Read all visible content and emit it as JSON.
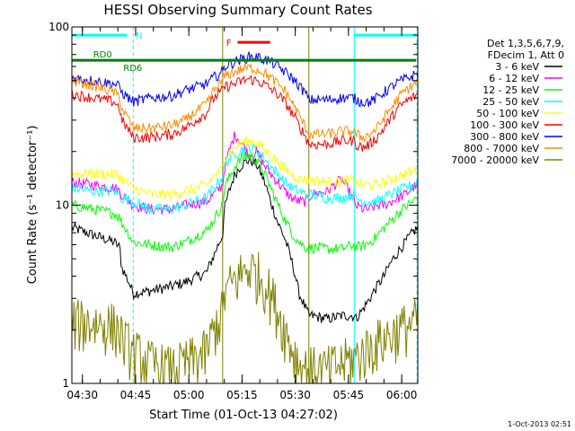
{
  "chart_data": {
    "type": "line",
    "title": "HESSI Observing Summary Count Rates",
    "xlabel": "Start Time (01-Oct-13 04:27:02)",
    "ylabel": "Count Rate (s⁻¹ detector⁻¹)",
    "y_scale": "log",
    "ylim": [
      1,
      100
    ],
    "y_ticks": [
      {
        "value": 1,
        "label": "1"
      },
      {
        "value": 10,
        "label": "10"
      },
      {
        "value": 100,
        "label": "100"
      }
    ],
    "x_unit": "minutes since 04:27:02",
    "xlim": [
      0,
      97.5
    ],
    "x_ticks": [
      {
        "label": "04:30",
        "min": 2.97
      },
      {
        "label": "04:45",
        "min": 17.97
      },
      {
        "label": "05:00",
        "min": 32.97
      },
      {
        "label": "05:15",
        "min": 47.97
      },
      {
        "label": "05:30",
        "min": 62.97
      },
      {
        "label": "05:45",
        "min": 77.97
      },
      {
        "label": "06:00",
        "min": 92.97
      }
    ],
    "timestamp": "1-Oct-2013 02:51",
    "legend_header": [
      "Det 1,3,5,6,7,9,",
      "FDecim 1, Att 0"
    ],
    "legend_placement": "right",
    "annotations": [
      {
        "label": "N",
        "color": "#00ffff",
        "segments": [
          [
            0,
            15.6
          ],
          [
            79.6,
            97
          ]
        ],
        "y": 90
      },
      {
        "label": "RD0",
        "color": "#008000",
        "segments": [
          [
            0,
            97
          ]
        ],
        "y": 65
      },
      {
        "label": "RD6",
        "color": "#008000",
        "segments": [],
        "y": 65
      },
      {
        "label": "F",
        "color": "#ff0000",
        "segments": [
          [
            46.7,
            55.9
          ]
        ],
        "y": 82
      }
    ],
    "markers": {
      "solid": [
        0,
        79.6
      ],
      "dashed": [
        17.3,
        97.3
      ],
      "olive": [
        42.5,
        66.8
      ]
    },
    "x": [
      0,
      6,
      12,
      13.5,
      14,
      17.3,
      22,
      28,
      32,
      38,
      40,
      42.5,
      43,
      46,
      48,
      50,
      52,
      54,
      56,
      58,
      60,
      62,
      64,
      66,
      66.8,
      67.5,
      72,
      76,
      79.6,
      80,
      82,
      84,
      86,
      88,
      90,
      92,
      94,
      96,
      97.5
    ],
    "series": [
      {
        "name": "3 - 6 keV",
        "color": "#000000",
        "values": [
          7.5,
          6.8,
          6.2,
          5.8,
          4.5,
          3.2,
          3.3,
          3.5,
          3.7,
          4.2,
          5.2,
          6.8,
          9.5,
          15,
          17,
          18,
          17,
          14,
          10.5,
          8,
          6.5,
          4.8,
          3.2,
          2.6,
          2.4,
          2.4,
          2.3,
          2.4,
          2.4,
          2.3,
          2.6,
          3,
          3.5,
          4,
          4.8,
          5.5,
          6.2,
          7,
          7.5
        ]
      },
      {
        "name": "6 - 12 keV",
        "color": "#ff00ff",
        "values": [
          13.5,
          13,
          12.5,
          12,
          11.5,
          10,
          9.5,
          9.5,
          10,
          10.5,
          11.5,
          13,
          16,
          25,
          22,
          19,
          20,
          17,
          15,
          13.5,
          12,
          11,
          10.5,
          10.5,
          11,
          11.5,
          12,
          14,
          10.5,
          10,
          9.5,
          9.5,
          10,
          10,
          10.5,
          11,
          11.5,
          12.5,
          13
        ]
      },
      {
        "name": "12 - 25 keV",
        "color": "#00ff00",
        "values": [
          10,
          9.5,
          9,
          8.5,
          8,
          6.2,
          6,
          5.8,
          6.2,
          7.2,
          8.3,
          10,
          12.5,
          16.5,
          18.5,
          19,
          18,
          15.5,
          12.5,
          10.2,
          8.3,
          7,
          6.2,
          5.8,
          5.7,
          5.8,
          5.7,
          5.7,
          6,
          5.8,
          5.9,
          6.2,
          6.7,
          7.5,
          8.2,
          9,
          9.8,
          10.5,
          11
        ]
      },
      {
        "name": "25 - 50 keV",
        "color": "#00ffff",
        "values": [
          12.5,
          12,
          12,
          11.5,
          11,
          10.5,
          9.5,
          9.5,
          10,
          11,
          12.5,
          14.5,
          17,
          19.5,
          20.5,
          21,
          20.5,
          18.5,
          16.5,
          15,
          13.5,
          12.5,
          12,
          11.5,
          11.5,
          11.5,
          11,
          11,
          11.5,
          11,
          10.5,
          10.5,
          10.5,
          11,
          11.5,
          12,
          12.5,
          13,
          13.5
        ]
      },
      {
        "name": "50 - 100 keV",
        "color": "#ffff00",
        "values": [
          15,
          15,
          15,
          14.5,
          14,
          12.5,
          11.5,
          11.5,
          12,
          13,
          14.5,
          16,
          18.5,
          21,
          22.5,
          23,
          22.5,
          21,
          19,
          17.5,
          16,
          15,
          14,
          14,
          14,
          14,
          13.5,
          13.5,
          14,
          13.5,
          13,
          13,
          13,
          13.5,
          14,
          14.5,
          15,
          15.5,
          16
        ]
      },
      {
        "name": "100 - 300 keV",
        "color": "#ff0000",
        "values": [
          42,
          40,
          38,
          35,
          30,
          24,
          24,
          25,
          27,
          33,
          40,
          44,
          46,
          48,
          50,
          51,
          50,
          48,
          45,
          42,
          38,
          33,
          28,
          24,
          22,
          22,
          22,
          23,
          23,
          22,
          21,
          22,
          24,
          27,
          31,
          35,
          38,
          40,
          42
        ]
      },
      {
        "name": "300 - 800 keV",
        "color": "#0000ff",
        "values": [
          52,
          50,
          48,
          46,
          43,
          38,
          40,
          41,
          44,
          48,
          52,
          56,
          60,
          64,
          66,
          68,
          68,
          66,
          64,
          60,
          56,
          52,
          47,
          42,
          39,
          39,
          39,
          40,
          40,
          39,
          38,
          38,
          40,
          43,
          46,
          49,
          51,
          53,
          55
        ]
      },
      {
        "name": "800 - 7000 keV",
        "color": "#ff8c00",
        "values": [
          50,
          47,
          43,
          40,
          35,
          27,
          27,
          28,
          30,
          37,
          44,
          50,
          53,
          56,
          58,
          59,
          58,
          56,
          52,
          48,
          44,
          38,
          32,
          27,
          25,
          25,
          25,
          26,
          26,
          25,
          24,
          25,
          27,
          31,
          35,
          40,
          44,
          47,
          50
        ]
      },
      {
        "name": "7000 - 20000 keV",
        "color": "#808000",
        "values": [
          2.2,
          2.2,
          2.1,
          2,
          1.8,
          1.5,
          1.3,
          1.2,
          1.3,
          1.5,
          2,
          2.5,
          3.2,
          3.8,
          4.2,
          4.5,
          4.2,
          3.8,
          3.2,
          2.6,
          2,
          1.6,
          1.3,
          1.2,
          1.2,
          1.2,
          1.2,
          1.3,
          1.4,
          1.4,
          1.5,
          1.6,
          1.7,
          1.8,
          1.9,
          2,
          2.1,
          2.2,
          2.3
        ]
      }
    ]
  }
}
